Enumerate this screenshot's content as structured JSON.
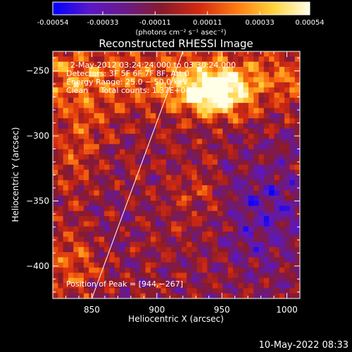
{
  "colorbar": {
    "ticks": [
      "-0.00054",
      "-0.00033",
      "-0.00011",
      "0.00011",
      "0.00033",
      "0.00054"
    ],
    "units": "(photons cm⁻² s⁻¹ asec⁻²)"
  },
  "chart_data": {
    "type": "heatmap",
    "title": "Reconstructed RHESSI Image",
    "xlabel": "Heliocentric X (arcsec)",
    "ylabel": "Heliocentric Y (arcsec)",
    "xlim": [
      820,
      1010
    ],
    "ylim": [
      -425,
      -235
    ],
    "x_ticks": [
      850,
      900,
      950,
      1000
    ],
    "y_ticks": [
      -400,
      -350,
      -300,
      -250
    ],
    "x_tick_labels": [
      "850",
      "900",
      "950",
      "1000"
    ],
    "y_tick_labels": [
      "−400",
      "−350",
      "−300",
      "−250"
    ],
    "colorbar_range": [
      -0.00054,
      0.00054
    ],
    "colormap": [
      "#0000ff",
      "#5a18c8",
      "#6b1a86",
      "#8a1a2a",
      "#d42a10",
      "#ff7a10",
      "#ffd23a",
      "#ffffe8"
    ],
    "annotations": {
      "time": "2‑May‑2012 03:24:24.000 to 03:30:24.000",
      "detectors": "Detectors: 3F 5F 6F 7F 8F, Att 0",
      "energy": "Energy Range: 25.0 − 50.0 keV",
      "clean": "Clean     Total counts: 1.37E+04",
      "peak": "Position of Peak = [944,−267]"
    },
    "peak": [
      944,
      -267
    ],
    "limb_line": [
      [
        850,
        -425
      ],
      [
        920,
        -235
      ]
    ]
  },
  "footer": {
    "timestamp": "10‑May‑2022 08:33"
  },
  "colors": {
    "background": "#000000",
    "text": "#ffffff"
  }
}
